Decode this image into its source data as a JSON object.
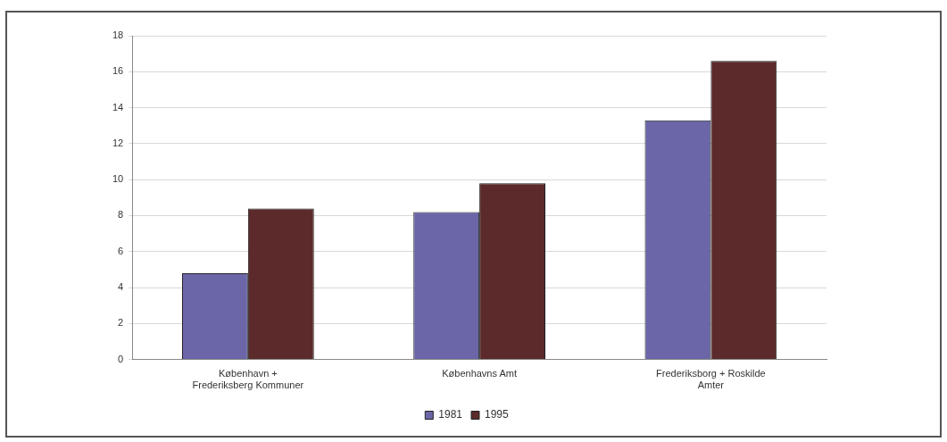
{
  "chart_data": {
    "type": "bar",
    "categories": [
      "København + Frederiksberg Kommuner",
      "Københavns Amt",
      "Frederiksborg + Roskilde Amter"
    ],
    "series": [
      {
        "name": "1981",
        "color": "#6a66a8",
        "values": [
          4.8,
          8.2,
          13.3
        ]
      },
      {
        "name": "1995",
        "color": "#5c2a2a",
        "values": [
          8.4,
          9.8,
          16.6
        ]
      }
    ],
    "ylim": [
      0,
      18
    ],
    "yticks": [
      0,
      2,
      4,
      6,
      8,
      10,
      12,
      14,
      16,
      18
    ],
    "grid": "y",
    "legend": "bottom"
  }
}
